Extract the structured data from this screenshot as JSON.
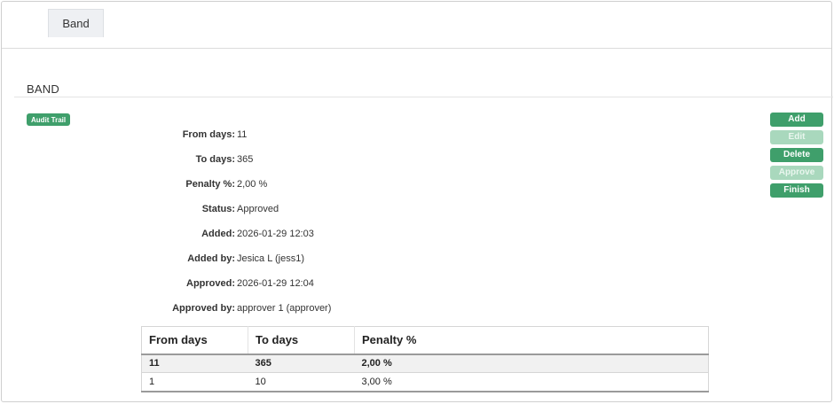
{
  "tabs": [
    {
      "label": "Band"
    }
  ],
  "page_title": "BAND",
  "audit_trail_label": "Audit Trail",
  "details": [
    {
      "label": "From days:",
      "value": "11"
    },
    {
      "label": "To days:",
      "value": "365"
    },
    {
      "label": "Penalty %:",
      "value": "2,00 %"
    },
    {
      "label": "Status:",
      "value": "Approved"
    },
    {
      "label": "Added:",
      "value": "2026-01-29 12:03"
    },
    {
      "label": "Added by:",
      "value": "Jesica L (jess1)"
    },
    {
      "label": "Approved:",
      "value": "2026-01-29 12:04"
    },
    {
      "label": "Approved by:",
      "value": "approver 1 (approver)"
    }
  ],
  "actions": [
    {
      "label": "Add",
      "enabled": true
    },
    {
      "label": "Edit",
      "enabled": false
    },
    {
      "label": "Delete",
      "enabled": true
    },
    {
      "label": "Approve",
      "enabled": false
    },
    {
      "label": "Finish",
      "enabled": true
    }
  ],
  "table": {
    "headers": [
      "From days",
      "To days",
      "Penalty %"
    ],
    "rows": [
      [
        "11",
        "365",
        "2,00 %"
      ],
      [
        "1",
        "10",
        "3,00 %"
      ]
    ]
  },
  "colors": {
    "accent": "#3f9f6b",
    "accent_disabled": "#a9d8bd"
  }
}
